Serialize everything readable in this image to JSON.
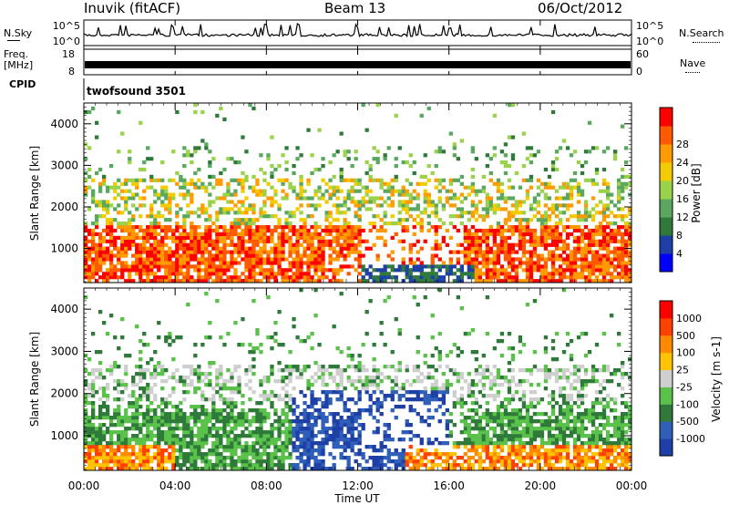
{
  "header": {
    "radar": "Inuvik (fitACF)",
    "beam": "Beam 13",
    "date": "06/Oct/2012"
  },
  "top_panels": {
    "nsky_label": "N.Sky",
    "nsearch_label": "N.Search",
    "noise_ticks": [
      "10^5",
      "10^0"
    ],
    "freq_label": "Freq.",
    "freq_unit": "[MHz]",
    "freq_ticks": [
      18,
      8
    ],
    "nave_label": "Nave",
    "nave_ticks": [
      60,
      0
    ],
    "cpid_label": "CPID",
    "cpid_value": "twofsound 3501"
  },
  "colors": {
    "power_scale": [
      "#0000ff",
      "#1e3fa6",
      "#2f7a3a",
      "#5aa760",
      "#9ad24a",
      "#f2cc00",
      "#ff9a00",
      "#ff5a00",
      "#ff0000"
    ],
    "velocity_scale": [
      "#1e3fa6",
      "#2f5fb8",
      "#2f7a3a",
      "#5ac24a",
      "#cfcfcf",
      "#ffc400",
      "#ff8a00",
      "#ff4000",
      "#ff0000"
    ]
  },
  "chart_data": [
    {
      "type": "heatmap",
      "name": "power",
      "ylabel": "Slant Range [km]",
      "colorbar_label": "Power [dB]",
      "colorbar_ticks": [
        4,
        8,
        12,
        16,
        20,
        24,
        28
      ],
      "y_ticks": [
        1000,
        2000,
        3000,
        4000
      ],
      "ylim": [
        180,
        4500
      ],
      "x_ticks": [
        "00:00",
        "04:00",
        "08:00",
        "12:00",
        "16:00",
        "20:00",
        "00:00"
      ],
      "xlim_hours": [
        0,
        24
      ]
    },
    {
      "type": "heatmap",
      "name": "velocity",
      "ylabel": "Slant Range [km]",
      "colorbar_label": "Velocity [m s-1]",
      "colorbar_ticks": [
        "1000",
        "500",
        "100",
        "25",
        "-25",
        "-100",
        "-500",
        "-1000"
      ],
      "y_ticks": [
        1000,
        2000,
        3000,
        4000
      ],
      "ylim": [
        180,
        4500
      ],
      "x_ticks": [
        "00:00",
        "04:00",
        "08:00",
        "12:00",
        "16:00",
        "20:00",
        "00:00"
      ],
      "xlim_hours": [
        0,
        24
      ],
      "xlabel": "Time UT"
    }
  ]
}
